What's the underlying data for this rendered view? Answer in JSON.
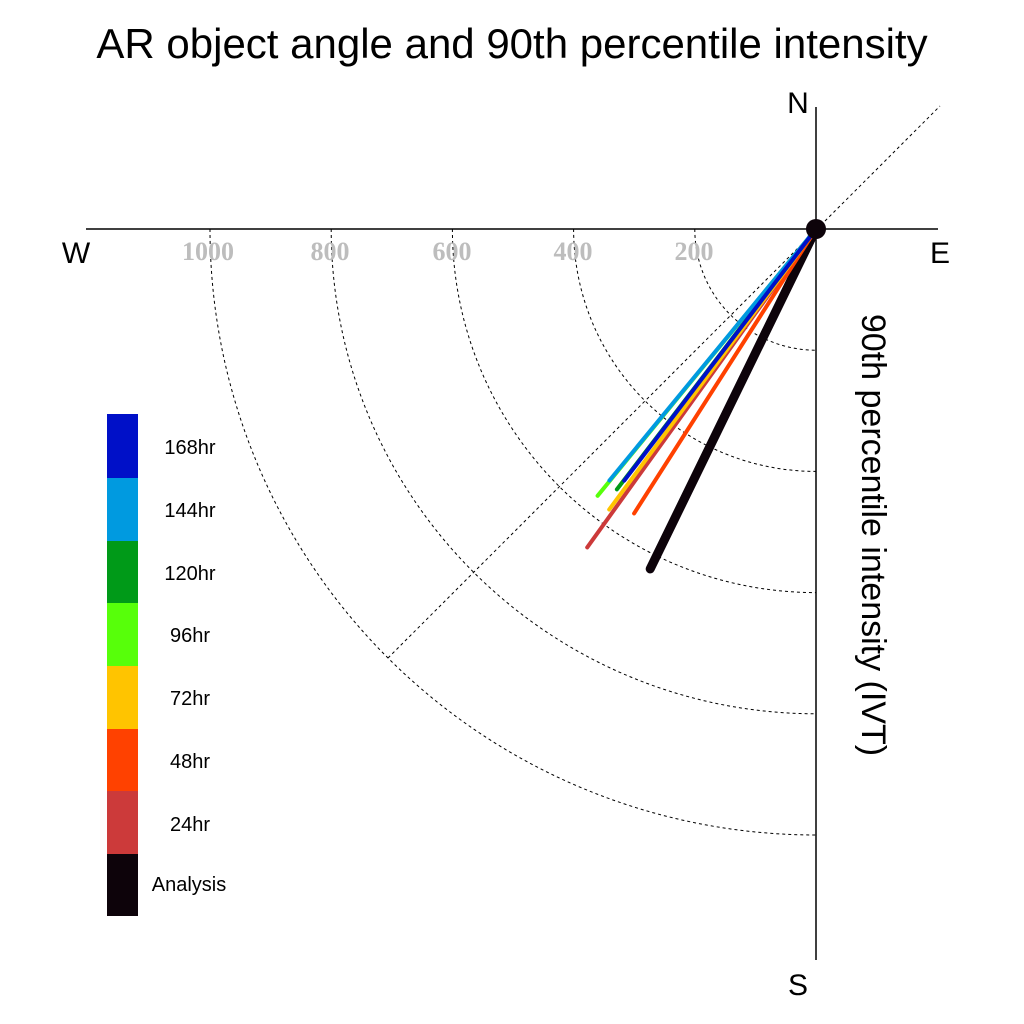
{
  "chart_data": {
    "type": "polar-vector",
    "title": "AR object angle and 90th percentile intensity",
    "ylabel": "90th percentile intensity (IVT)",
    "compass": {
      "north": "N",
      "south": "S",
      "east": "E",
      "west": "W"
    },
    "rings": [
      200,
      400,
      600,
      800,
      1000
    ],
    "ring_labels": [
      "1000",
      "800",
      "600",
      "400",
      "200"
    ],
    "series": [
      {
        "name": "168hr",
        "color": "#0010c8",
        "angle_deg": 217.3,
        "intensity": 522
      },
      {
        "name": "144hr",
        "color": "#009ae0",
        "angle_deg": 219.4,
        "intensity": 537
      },
      {
        "name": "120hr",
        "color": "#009a18",
        "angle_deg": 217.4,
        "intensity": 541
      },
      {
        "name": "96hr",
        "color": "#57ff0a",
        "angle_deg": 219.3,
        "intensity": 569
      },
      {
        "name": "72hr",
        "color": "#ffc400",
        "angle_deg": 216.4,
        "intensity": 575
      },
      {
        "name": "48hr",
        "color": "#ff4100",
        "angle_deg": 212.6,
        "intensity": 557
      },
      {
        "name": "24hr",
        "color": "#cc3a3a",
        "angle_deg": 215.7,
        "intensity": 647
      },
      {
        "name": "Analysis",
        "color": "#0d030a",
        "angle_deg": 206.0,
        "intensity": 624
      }
    ],
    "diagonal_reference_deg": [
      45,
      225
    ],
    "grid": true,
    "legend_position": "left"
  }
}
